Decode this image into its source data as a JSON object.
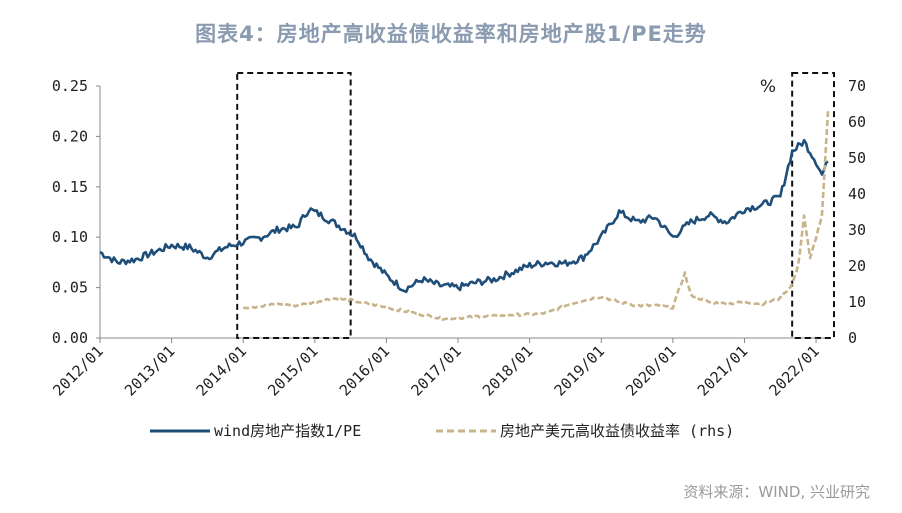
{
  "title": "图表4：房地产高收益债收益率和房地产股1/PE走势",
  "source": "资料来源：WIND, 兴业研究",
  "chart_data": {
    "type": "line",
    "title": "图表4：房地产高收益债收益率和房地产股1/PE走势",
    "x_ticks": [
      "2012/01",
      "2013/01",
      "2014/01",
      "2015/01",
      "2016/01",
      "2017/01",
      "2018/01",
      "2019/01",
      "2020/01",
      "2021/01",
      "2022/01"
    ],
    "y_left": {
      "ticks": [
        "0.00",
        "0.05",
        "0.10",
        "0.15",
        "0.20",
        "0.25"
      ],
      "lim": [
        0,
        0.25
      ]
    },
    "y_right": {
      "unit": "%",
      "ticks": [
        "0",
        "10",
        "20",
        "30",
        "40",
        "50",
        "60",
        "70"
      ],
      "lim": [
        0,
        70
      ]
    },
    "legend_position": "bottom",
    "highlights": [
      {
        "from": "2014/01",
        "to": "2015/06"
      },
      {
        "from": "2021/10",
        "to": "2022/03"
      }
    ],
    "series": [
      {
        "name": "wind房地产指数1/PE",
        "axis": "left",
        "color": "#1f4e79",
        "points": [
          [
            "2012/01",
            0.085
          ],
          [
            "2012/04",
            0.075
          ],
          [
            "2012/07",
            0.078
          ],
          [
            "2012/10",
            0.085
          ],
          [
            "2013/01",
            0.092
          ],
          [
            "2013/04",
            0.09
          ],
          [
            "2013/07",
            0.08
          ],
          [
            "2013/10",
            0.09
          ],
          [
            "2014/01",
            0.095
          ],
          [
            "2014/04",
            0.1
          ],
          [
            "2014/07",
            0.108
          ],
          [
            "2014/10",
            0.11
          ],
          [
            "2014/12",
            0.128
          ],
          [
            "2015/02",
            0.122
          ],
          [
            "2015/04",
            0.115
          ],
          [
            "2015/06",
            0.108
          ],
          [
            "2015/08",
            0.1
          ],
          [
            "2015/10",
            0.08
          ],
          [
            "2016/01",
            0.062
          ],
          [
            "2016/04",
            0.048
          ],
          [
            "2016/07",
            0.058
          ],
          [
            "2016/10",
            0.052
          ],
          [
            "2017/01",
            0.05
          ],
          [
            "2017/04",
            0.055
          ],
          [
            "2017/07",
            0.058
          ],
          [
            "2017/10",
            0.065
          ],
          [
            "2018/01",
            0.072
          ],
          [
            "2018/04",
            0.075
          ],
          [
            "2018/07",
            0.074
          ],
          [
            "2018/10",
            0.08
          ],
          [
            "2019/01",
            0.1
          ],
          [
            "2019/04",
            0.125
          ],
          [
            "2019/07",
            0.115
          ],
          [
            "2019/10",
            0.12
          ],
          [
            "2020/01",
            0.1
          ],
          [
            "2020/04",
            0.115
          ],
          [
            "2020/07",
            0.122
          ],
          [
            "2020/10",
            0.115
          ],
          [
            "2021/01",
            0.128
          ],
          [
            "2021/04",
            0.132
          ],
          [
            "2021/07",
            0.14
          ],
          [
            "2021/09",
            0.185
          ],
          [
            "2021/11",
            0.195
          ],
          [
            "2022/01",
            0.175
          ],
          [
            "2022/02",
            0.162
          ],
          [
            "2022/03",
            0.175
          ]
        ]
      },
      {
        "name": "房地产美元高收益债收益率 (rhs)",
        "axis": "right",
        "color": "#c8b48a",
        "points": [
          [
            "2014/01",
            8.5
          ],
          [
            "2014/04",
            8.8
          ],
          [
            "2014/07",
            9.5
          ],
          [
            "2014/10",
            9.0
          ],
          [
            "2015/01",
            10.0
          ],
          [
            "2015/04",
            11.0
          ],
          [
            "2015/07",
            10.5
          ],
          [
            "2015/10",
            9.5
          ],
          [
            "2016/01",
            8.5
          ],
          [
            "2016/04",
            7.5
          ],
          [
            "2016/07",
            6.5
          ],
          [
            "2016/10",
            5.5
          ],
          [
            "2017/01",
            5.5
          ],
          [
            "2017/04",
            6.0
          ],
          [
            "2017/07",
            6.0
          ],
          [
            "2017/10",
            6.5
          ],
          [
            "2018/01",
            6.5
          ],
          [
            "2018/04",
            7.0
          ],
          [
            "2018/07",
            9.0
          ],
          [
            "2018/10",
            10.5
          ],
          [
            "2019/01",
            11.5
          ],
          [
            "2019/04",
            10.0
          ],
          [
            "2019/07",
            9.0
          ],
          [
            "2019/10",
            9.0
          ],
          [
            "2020/01",
            8.5
          ],
          [
            "2020/03",
            18.0
          ],
          [
            "2020/04",
            12.0
          ],
          [
            "2020/07",
            10.0
          ],
          [
            "2020/10",
            9.5
          ],
          [
            "2021/01",
            10.0
          ],
          [
            "2021/04",
            9.5
          ],
          [
            "2021/07",
            11.0
          ],
          [
            "2021/09",
            15.0
          ],
          [
            "2021/10",
            20.0
          ],
          [
            "2021/11",
            34.0
          ],
          [
            "2021/12",
            22.0
          ],
          [
            "2022/01",
            28.0
          ],
          [
            "2022/02",
            34.0
          ],
          [
            "2022/03",
            63.0
          ]
        ]
      }
    ]
  }
}
